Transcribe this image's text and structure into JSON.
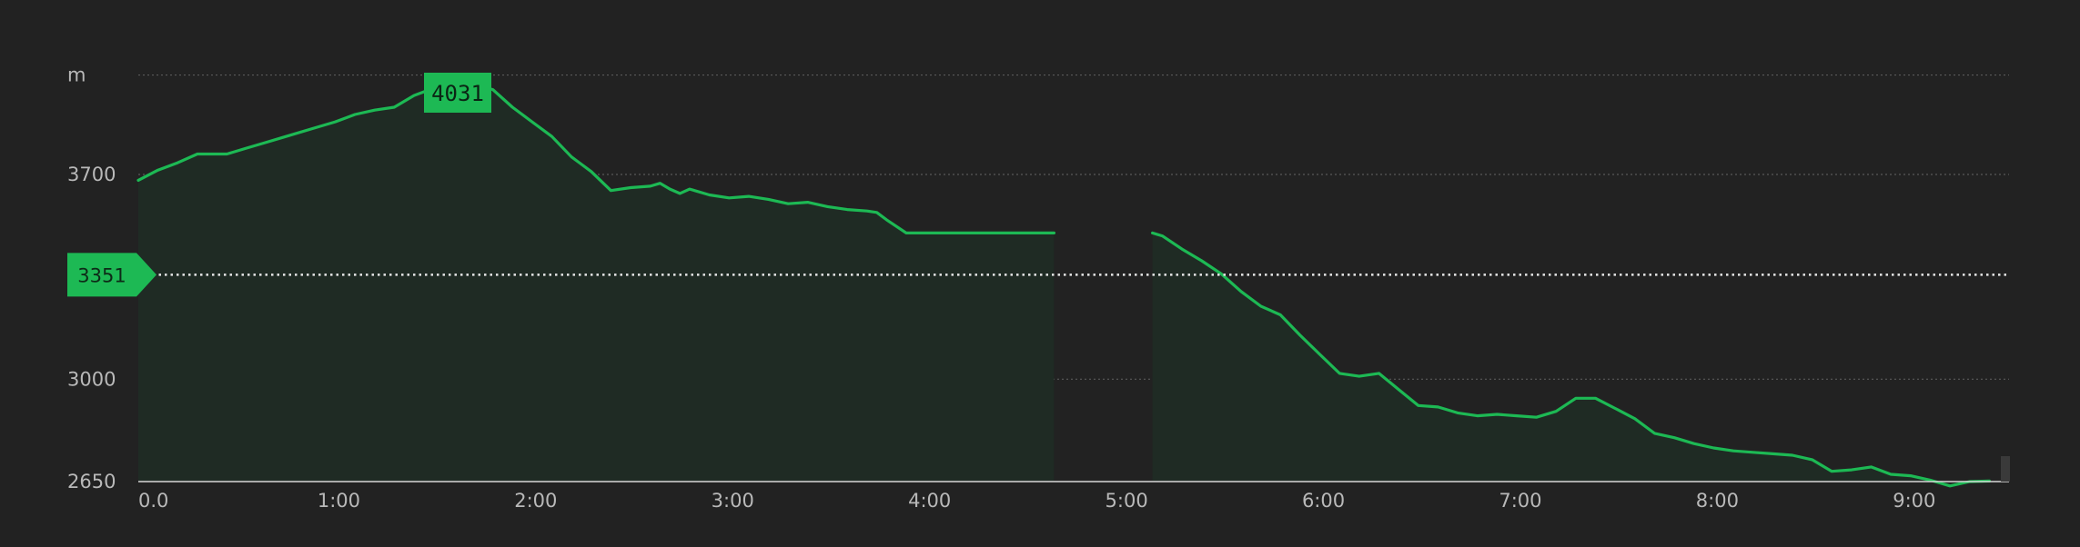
{
  "chart_data": {
    "type": "area",
    "title": "",
    "xlabel": "",
    "ylabel": "m",
    "xlim": [
      0,
      9.5
    ],
    "ylim": [
      2650,
      4150
    ],
    "grid": true,
    "x_ticks": [
      {
        "value": 0.0,
        "label": "0.0"
      },
      {
        "value": 1.0,
        "label": "1:00"
      },
      {
        "value": 2.0,
        "label": "2:00"
      },
      {
        "value": 3.0,
        "label": "3:00"
      },
      {
        "value": 4.0,
        "label": "4:00"
      },
      {
        "value": 5.0,
        "label": "5:00"
      },
      {
        "value": 6.0,
        "label": "6:00"
      },
      {
        "value": 7.0,
        "label": "7:00"
      },
      {
        "value": 8.0,
        "label": "8:00"
      },
      {
        "value": 9.0,
        "label": "9:00"
      }
    ],
    "y_ticks": [
      {
        "value": 3700,
        "label": "3700"
      },
      {
        "value": 3000,
        "label": "3000"
      },
      {
        "value": 2650,
        "label": "2650"
      }
    ],
    "unit_label": "m",
    "top_gridline_value": 4040,
    "reference_line": {
      "value": 3351,
      "label": "3351"
    },
    "max_marker": {
      "x": 1.6,
      "value": 4031,
      "label": "4031"
    },
    "segments": [
      {
        "x": [
          0.0,
          0.1,
          0.2,
          0.3,
          0.45,
          0.55,
          0.65,
          0.75,
          0.9,
          1.0,
          1.1,
          1.2,
          1.3,
          1.4,
          1.5,
          1.6,
          1.7,
          1.8,
          1.9,
          2.0,
          2.1,
          2.2,
          2.3,
          2.4,
          2.5,
          2.6,
          2.65,
          2.7,
          2.75,
          2.8,
          2.9,
          3.0,
          3.1,
          3.2,
          3.3,
          3.4,
          3.5,
          3.6,
          3.7,
          3.75,
          3.8,
          3.9,
          4.0,
          4.2,
          4.4,
          4.65
        ],
        "y": [
          3680,
          3715,
          3740,
          3770,
          3770,
          3790,
          3810,
          3830,
          3860,
          3880,
          3905,
          3920,
          3930,
          3970,
          3995,
          4031,
          4010,
          3990,
          3930,
          3880,
          3830,
          3760,
          3710,
          3645,
          3655,
          3660,
          3670,
          3650,
          3635,
          3650,
          3630,
          3620,
          3625,
          3615,
          3600,
          3605,
          3590,
          3580,
          3575,
          3570,
          3545,
          3500,
          3500,
          3500,
          3500,
          3500
        ]
      },
      {
        "x": [
          5.15,
          5.2,
          5.3,
          5.4,
          5.5,
          5.6,
          5.7,
          5.8,
          5.9,
          6.0,
          6.1,
          6.2,
          6.3,
          6.4,
          6.5,
          6.6,
          6.7,
          6.8,
          6.9,
          7.0,
          7.1,
          7.2,
          7.3,
          7.4,
          7.5,
          7.6,
          7.7,
          7.8,
          7.9,
          8.0,
          8.1,
          8.2,
          8.3,
          8.4,
          8.5,
          8.6,
          8.7,
          8.8,
          8.9,
          9.0,
          9.1,
          9.2,
          9.3,
          9.4
        ],
        "y": [
          3500,
          3490,
          3445,
          3405,
          3360,
          3300,
          3250,
          3220,
          3150,
          3085,
          3020,
          3010,
          3020,
          2965,
          2910,
          2905,
          2885,
          2875,
          2880,
          2875,
          2870,
          2890,
          2935,
          2935,
          2900,
          2865,
          2815,
          2800,
          2780,
          2765,
          2755,
          2750,
          2745,
          2740,
          2725,
          2685,
          2690,
          2700,
          2675,
          2670,
          2655,
          2635,
          2650,
          2652
        ]
      }
    ]
  }
}
